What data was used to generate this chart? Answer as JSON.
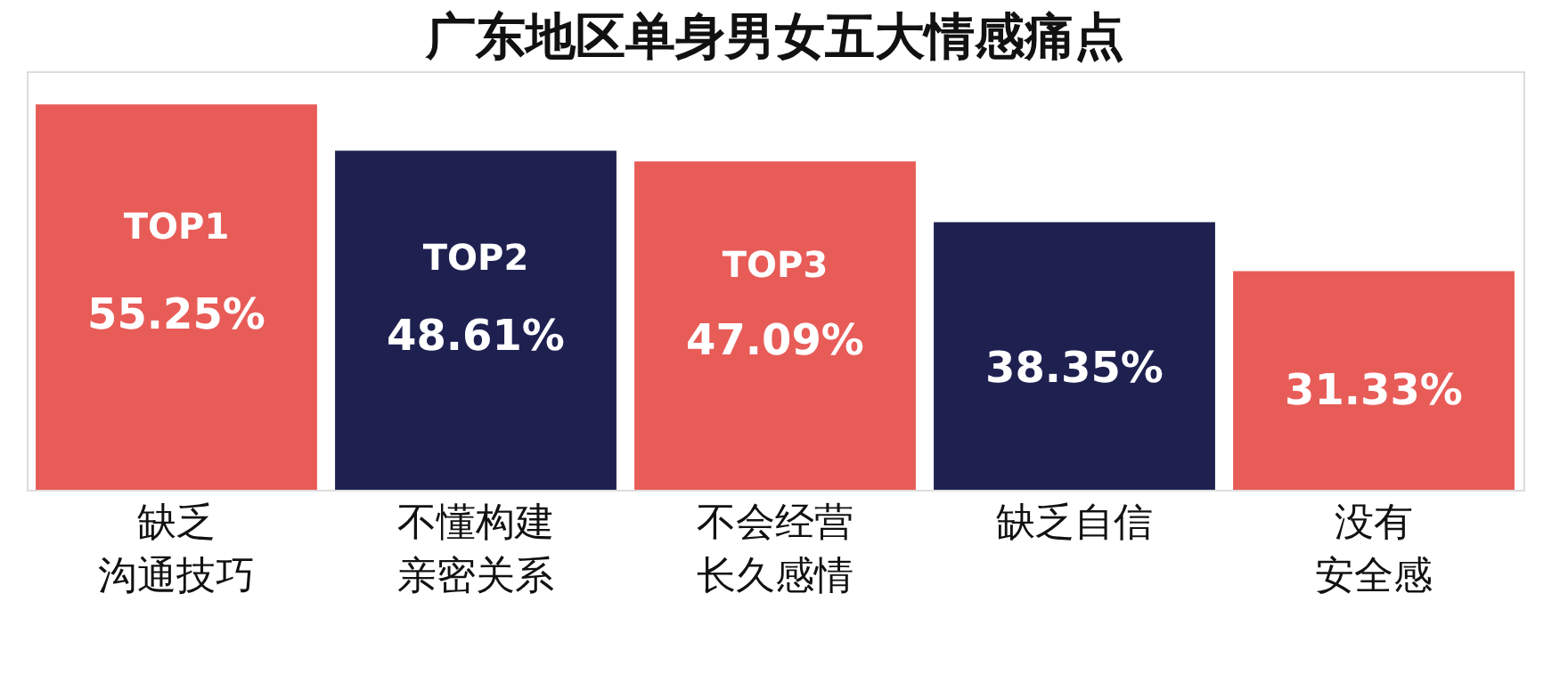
{
  "chart_data": {
    "type": "bar",
    "title": "广东地区单身男女五大情感痛点",
    "categories": [
      "缺乏沟通技巧",
      "不懂构建亲密关系",
      "不会经营长久感情",
      "缺乏自信",
      "没有安全感"
    ],
    "values": [
      55.25,
      48.61,
      47.09,
      38.35,
      31.33
    ],
    "colors": [
      "#e85c58",
      "#1e2150",
      "#e85c58",
      "#1e2150",
      "#e85c58"
    ],
    "value_labels": [
      "55.25%",
      "48.61%",
      "47.09%",
      "38.35%",
      "31.33%"
    ],
    "annotations": [
      "TOP1",
      "TOP2",
      "TOP3"
    ],
    "tick_labels": "x",
    "grid": false,
    "legend": false
  }
}
